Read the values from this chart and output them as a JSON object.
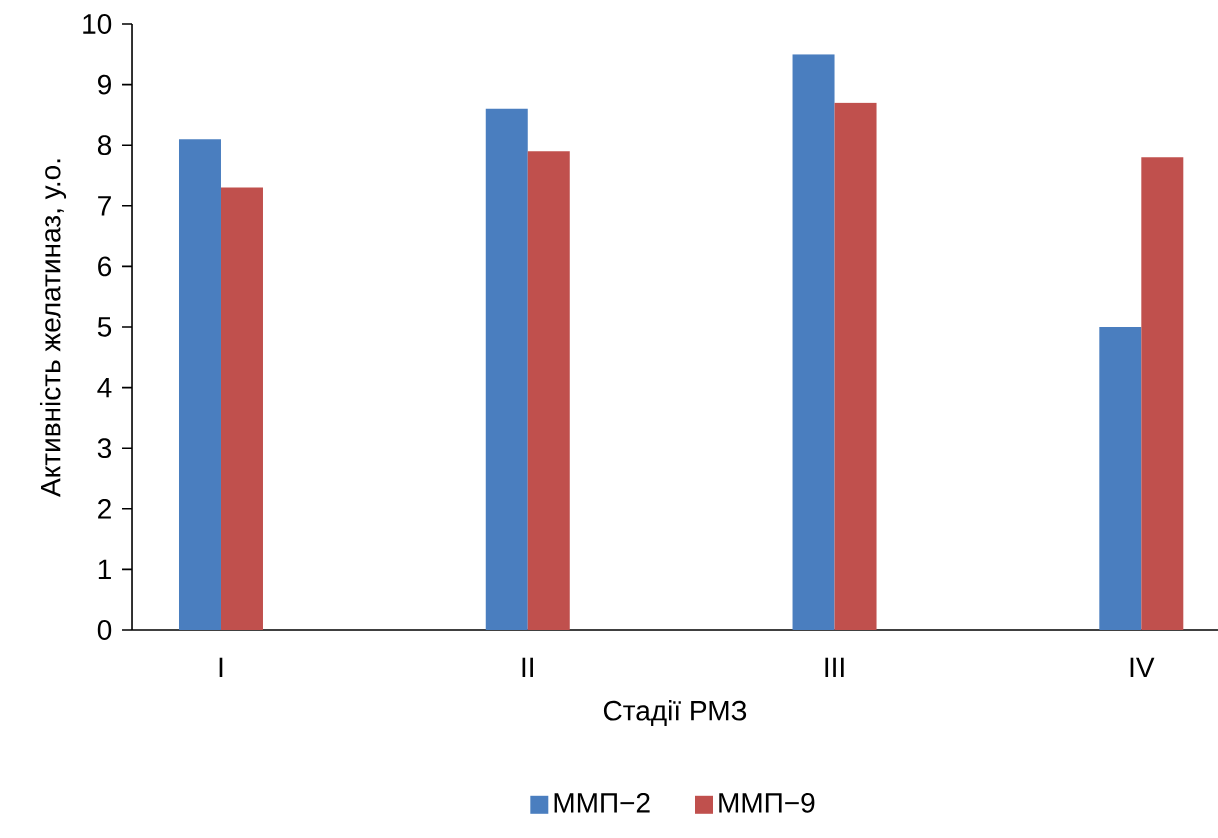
{
  "chart_data": {
    "type": "bar",
    "categories": [
      "I",
      "II",
      "III",
      "IV"
    ],
    "series": [
      {
        "name": "ММП−2",
        "color": "#4a7ebf",
        "values": [
          8.1,
          8.6,
          9.5,
          5.0
        ]
      },
      {
        "name": "ММП−9",
        "color": "#c0504d",
        "values": [
          7.3,
          7.9,
          8.7,
          7.8
        ]
      }
    ],
    "xlabel": "Стадії РМЗ",
    "ylabel": "Активність желатиназ, у.о.",
    "ylim": [
      0,
      10
    ],
    "yticks": [
      0,
      1,
      2,
      3,
      4,
      5,
      6,
      7,
      8,
      9,
      10
    ],
    "legend": "bottom",
    "grid": false
  }
}
